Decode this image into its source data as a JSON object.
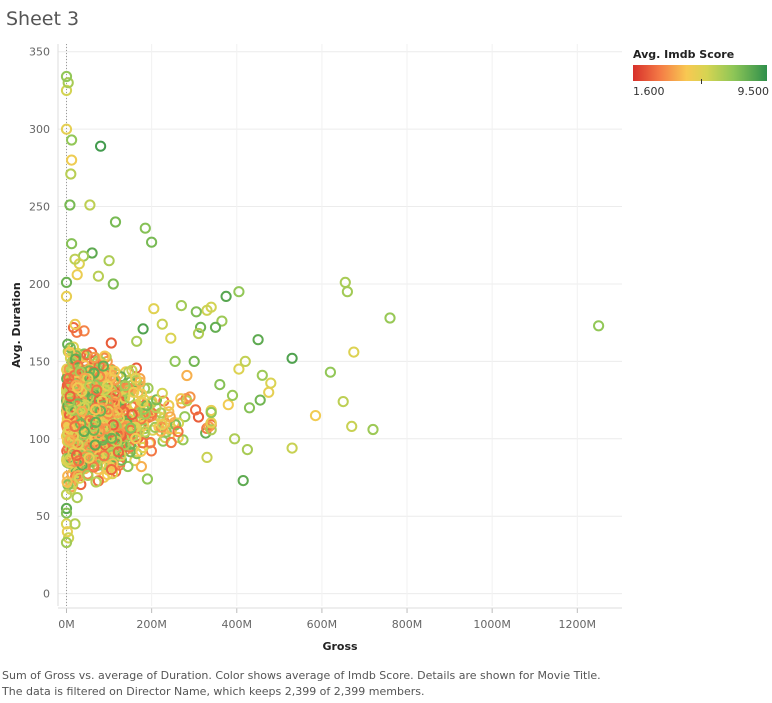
{
  "sheet": {
    "title": "Sheet 3"
  },
  "legend": {
    "title": "Avg. Imdb Score",
    "min_label": "1.600",
    "max_label": "9.500"
  },
  "caption": {
    "line1": "Sum of Gross vs. average of Duration.  Color shows average of Imdb Score.  Details are shown for Movie Title.",
    "line2": "The data is filtered on Director Name, which keeps 2,399 of 2,399 members."
  },
  "colors": {
    "low": "#d7302b",
    "mid_low": "#f47a45",
    "mid": "#f8c852",
    "mid_high": "#8ec657",
    "high": "#2f8f4b"
  },
  "chart_data": {
    "type": "scatter",
    "title": "Sheet 3",
    "xlabel": "Gross",
    "ylabel": "Avg. Duration",
    "xlim": [
      -20,
      1305
    ],
    "ylim": [
      -8,
      355
    ],
    "x_unit": "M",
    "x_ticks": [
      0,
      200,
      400,
      600,
      800,
      1000,
      1200
    ],
    "x_tick_labels": [
      "0M",
      "200M",
      "400M",
      "600M",
      "800M",
      "1000M",
      "1200M"
    ],
    "y_ticks": [
      0,
      50,
      100,
      150,
      200,
      250,
      300,
      350
    ],
    "y_tick_labels": [
      "0",
      "50",
      "100",
      "150",
      "200",
      "250",
      "300",
      "350"
    ],
    "color_encoding": {
      "field": "Avg. Imdb Score",
      "min": 1.6,
      "max": 9.5
    },
    "series": [
      {
        "name": "Movie Title",
        "points": [
          {
            "x": 1250,
            "y": 173,
            "score": 8.0
          },
          {
            "x": 760,
            "y": 178,
            "score": 7.9
          },
          {
            "x": 720,
            "y": 106,
            "score": 7.8
          },
          {
            "x": 670,
            "y": 108,
            "score": 7.0
          },
          {
            "x": 675,
            "y": 156,
            "score": 6.5
          },
          {
            "x": 655,
            "y": 201,
            "score": 7.6
          },
          {
            "x": 660,
            "y": 195,
            "score": 7.7
          },
          {
            "x": 650,
            "y": 124,
            "score": 7.2
          },
          {
            "x": 620,
            "y": 143,
            "score": 8.0
          },
          {
            "x": 585,
            "y": 115,
            "score": 5.8
          },
          {
            "x": 530,
            "y": 152,
            "score": 9.0
          },
          {
            "x": 530,
            "y": 94,
            "score": 7.0
          },
          {
            "x": 480,
            "y": 136,
            "score": 6.6
          },
          {
            "x": 475,
            "y": 130,
            "score": 6.2
          },
          {
            "x": 460,
            "y": 141,
            "score": 7.8
          },
          {
            "x": 455,
            "y": 125,
            "score": 8.5
          },
          {
            "x": 450,
            "y": 164,
            "score": 8.8
          },
          {
            "x": 430,
            "y": 120,
            "score": 8.2
          },
          {
            "x": 425,
            "y": 93,
            "score": 7.6
          },
          {
            "x": 415,
            "y": 73,
            "score": 8.8
          },
          {
            "x": 405,
            "y": 195,
            "score": 8.0
          },
          {
            "x": 375,
            "y": 192,
            "score": 8.9
          },
          {
            "x": 365,
            "y": 176,
            "score": 7.8
          },
          {
            "x": 350,
            "y": 172,
            "score": 8.7
          },
          {
            "x": 340,
            "y": 185,
            "score": 6.8
          },
          {
            "x": 330,
            "y": 183,
            "score": 6.9
          },
          {
            "x": 315,
            "y": 172,
            "score": 8.6
          },
          {
            "x": 310,
            "y": 168,
            "score": 7.4
          },
          {
            "x": 305,
            "y": 182,
            "score": 8.3
          },
          {
            "x": 270,
            "y": 186,
            "score": 7.7
          },
          {
            "x": 255,
            "y": 150,
            "score": 8.1
          },
          {
            "x": 245,
            "y": 165,
            "score": 6.6
          },
          {
            "x": 225,
            "y": 174,
            "score": 7.0
          },
          {
            "x": 205,
            "y": 184,
            "score": 6.4
          },
          {
            "x": 200,
            "y": 227,
            "score": 8.4
          },
          {
            "x": 185,
            "y": 236,
            "score": 8.2
          },
          {
            "x": 180,
            "y": 171,
            "score": 9.0
          },
          {
            "x": 165,
            "y": 163,
            "score": 7.6
          },
          {
            "x": 115,
            "y": 240,
            "score": 8.4
          },
          {
            "x": 110,
            "y": 200,
            "score": 8.3
          },
          {
            "x": 100,
            "y": 215,
            "score": 7.5
          },
          {
            "x": 80,
            "y": 289,
            "score": 9.2
          },
          {
            "x": 75,
            "y": 205,
            "score": 7.3
          },
          {
            "x": 60,
            "y": 220,
            "score": 8.8
          },
          {
            "x": 55,
            "y": 251,
            "score": 7.2
          },
          {
            "x": 40,
            "y": 218,
            "score": 7.8
          },
          {
            "x": 30,
            "y": 213,
            "score": 6.5
          },
          {
            "x": 25,
            "y": 206,
            "score": 6.0
          },
          {
            "x": 20,
            "y": 216,
            "score": 7.2
          },
          {
            "x": 12,
            "y": 226,
            "score": 8.2
          },
          {
            "x": 8,
            "y": 251,
            "score": 8.4
          },
          {
            "x": 10,
            "y": 271,
            "score": 7.3
          },
          {
            "x": 12,
            "y": 280,
            "score": 5.9
          },
          {
            "x": 12,
            "y": 293,
            "score": 8.0
          },
          {
            "x": 0,
            "y": 300,
            "score": 6.2
          },
          {
            "x": 0,
            "y": 325,
            "score": 6.8
          },
          {
            "x": 4,
            "y": 330,
            "score": 7.6
          },
          {
            "x": 0,
            "y": 334,
            "score": 8.0
          },
          {
            "x": 0,
            "y": 201,
            "score": 8.6
          },
          {
            "x": 0,
            "y": 192,
            "score": 6.1
          },
          {
            "x": 0,
            "y": 55,
            "score": 8.8
          },
          {
            "x": 0,
            "y": 52,
            "score": 8.2
          },
          {
            "x": 0,
            "y": 45,
            "score": 6.6
          },
          {
            "x": 20,
            "y": 45,
            "score": 7.4
          },
          {
            "x": 2,
            "y": 40,
            "score": 6.1
          },
          {
            "x": 5,
            "y": 36,
            "score": 6.9
          },
          {
            "x": 0,
            "y": 33,
            "score": 7.7
          },
          {
            "x": 0,
            "y": 64,
            "score": 7.2
          },
          {
            "x": 25,
            "y": 62,
            "score": 7.5
          },
          {
            "x": 190,
            "y": 74,
            "score": 8.0
          },
          {
            "x": 330,
            "y": 88,
            "score": 7.0
          },
          {
            "x": 395,
            "y": 100,
            "score": 7.5
          },
          {
            "x": 380,
            "y": 122,
            "score": 5.8
          },
          {
            "x": 405,
            "y": 145,
            "score": 6.5
          },
          {
            "x": 420,
            "y": 150,
            "score": 7.1
          },
          {
            "x": 390,
            "y": 128,
            "score": 7.9
          },
          {
            "x": 360,
            "y": 135,
            "score": 8.2
          },
          {
            "x": 300,
            "y": 150,
            "score": 8.5
          },
          {
            "x": 290,
            "y": 127,
            "score": 4.5
          }
        ],
        "dense_cluster": {
          "description": "Dense cloud of remaining movies (of 2,399) concentrated near low gross values",
          "x_range": [
            0,
            340
          ],
          "y_range": [
            62,
            200
          ],
          "y_center": 115,
          "count": 1500,
          "score_range": [
            3.0,
            8.8
          ]
        }
      }
    ]
  }
}
